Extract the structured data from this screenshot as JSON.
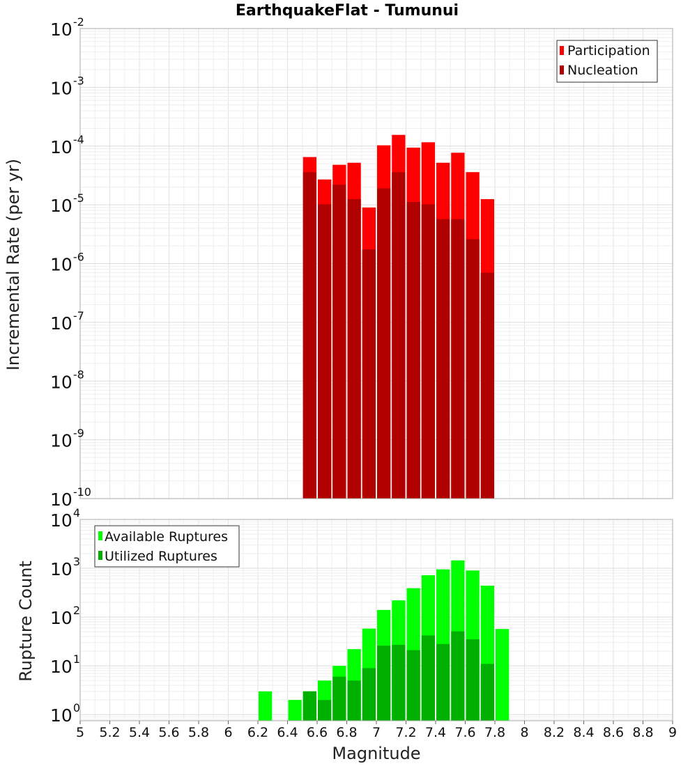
{
  "chart_data": [
    {
      "type": "bar",
      "title": "EarthquakeFlat - Tumunui",
      "xlabel": "Magnitude",
      "ylabel": "Incremental Rate (per yr)",
      "yscale": "log",
      "xlim": [
        5,
        9
      ],
      "ylim": [
        1e-10,
        0.01
      ],
      "grid": true,
      "legend": "top-right",
      "x": [
        6.55,
        6.65,
        6.75,
        6.85,
        6.95,
        7.05,
        7.15,
        7.25,
        7.35,
        7.45,
        7.55,
        7.65,
        7.75
      ],
      "series": [
        {
          "name": "Participation",
          "color": "#ff0000",
          "values": [
            6.5e-05,
            2.7e-05,
            4.8e-05,
            5.2e-05,
            9e-06,
            0.000103,
            0.000155,
            9.4e-05,
            0.000116,
            5.2e-05,
            7.7e-05,
            3.6e-05,
            1.25e-05
          ]
        },
        {
          "name": "Nucleation",
          "color": "#b00000",
          "values": [
            3.6e-05,
            1.02e-05,
            2.2e-05,
            1.25e-05,
            1.75e-06,
            1.9e-05,
            3.6e-05,
            1.12e-05,
            1.02e-05,
            5.7e-06,
            5.7e-06,
            2.6e-06,
            7e-07
          ]
        }
      ],
      "y_ticks": [
        {
          "base": "10",
          "exp": "-2"
        },
        {
          "base": "10",
          "exp": "-3"
        },
        {
          "base": "10",
          "exp": "-4"
        },
        {
          "base": "10",
          "exp": "-5"
        },
        {
          "base": "10",
          "exp": "-6"
        },
        {
          "base": "10",
          "exp": "-7"
        },
        {
          "base": "10",
          "exp": "-8"
        },
        {
          "base": "10",
          "exp": "-9"
        },
        {
          "base": "10",
          "exp": "-10"
        }
      ]
    },
    {
      "type": "bar",
      "title": "",
      "xlabel": "Magnitude",
      "ylabel": "Rupture Count",
      "yscale": "log",
      "xlim": [
        5,
        9
      ],
      "ylim": [
        0.75,
        10000
      ],
      "grid": true,
      "legend": "top-left",
      "x": [
        6.25,
        6.45,
        6.55,
        6.65,
        6.75,
        6.85,
        6.95,
        7.05,
        7.15,
        7.25,
        7.35,
        7.45,
        7.55,
        7.65,
        7.75,
        7.85
      ],
      "series": [
        {
          "name": "Available Ruptures",
          "color": "#00ff00",
          "values": [
            3,
            2,
            3,
            5,
            10,
            22,
            58,
            140,
            220,
            390,
            720,
            950,
            1450,
            900,
            440,
            57
          ]
        },
        {
          "name": "Utilized Ruptures",
          "color": "#00b000",
          "values": [
            0,
            0,
            3,
            2,
            6,
            5,
            9,
            26,
            27,
            21,
            42,
            28,
            51,
            35,
            11,
            0
          ]
        }
      ],
      "y_ticks": [
        {
          "base": "10",
          "exp": "4"
        },
        {
          "base": "10",
          "exp": "3"
        },
        {
          "base": "10",
          "exp": "2"
        },
        {
          "base": "10",
          "exp": "1"
        },
        {
          "base": "10",
          "exp": "0"
        }
      ],
      "x_ticks": [
        "5",
        "5.2",
        "5.4",
        "5.6",
        "5.8",
        "6",
        "6.2",
        "6.4",
        "6.6",
        "6.8",
        "7",
        "7.2",
        "7.4",
        "7.6",
        "7.8",
        "8",
        "8.2",
        "8.4",
        "8.6",
        "8.8",
        "9"
      ]
    }
  ]
}
